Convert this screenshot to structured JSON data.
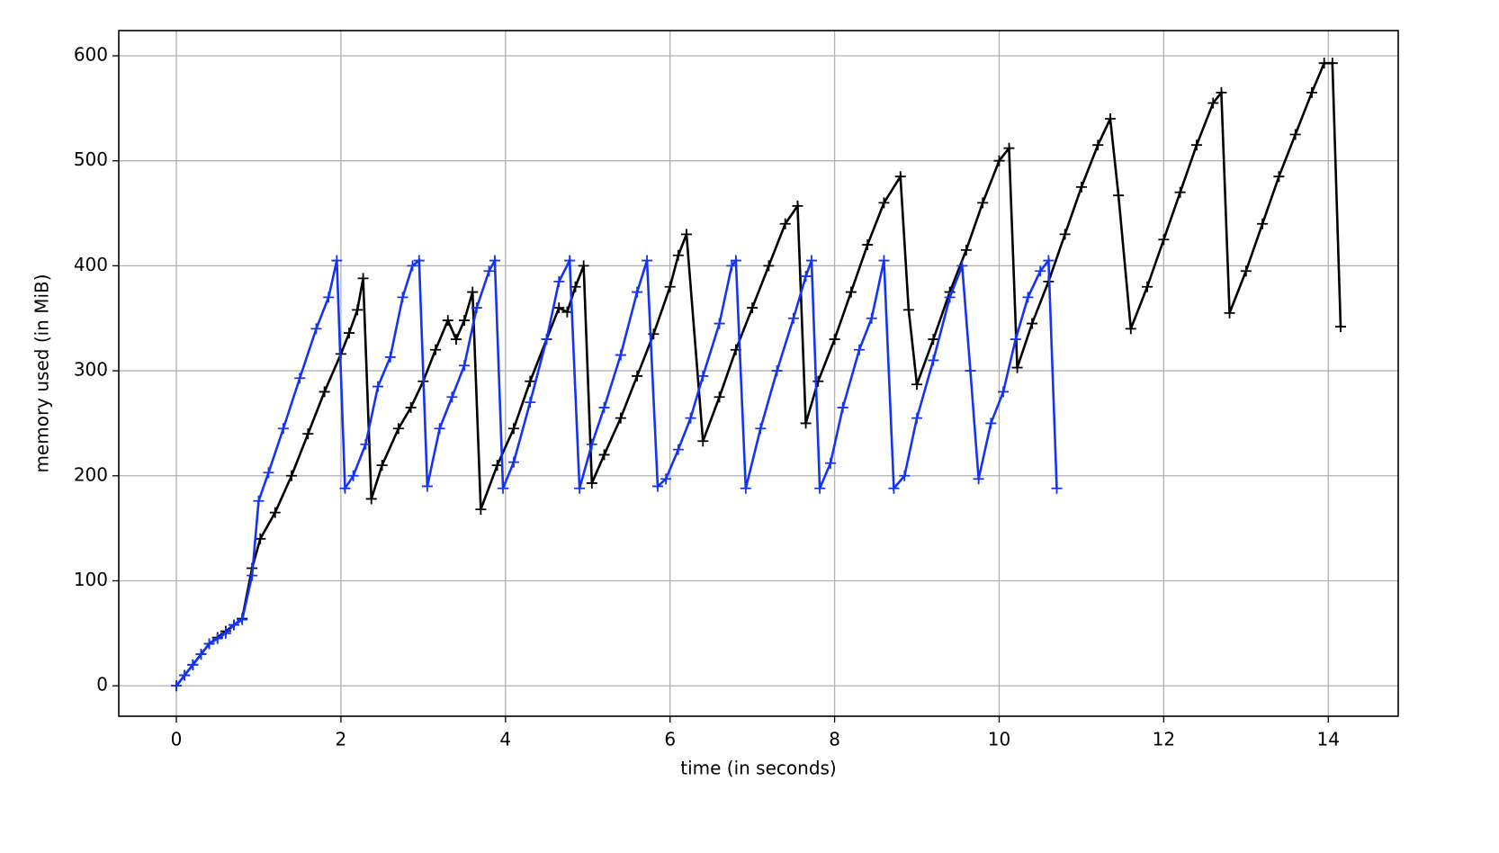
{
  "chart_data": {
    "type": "line",
    "xlabel": "time (in seconds)",
    "ylabel": "memory used (in MiB)",
    "xlim": [
      -0.7,
      14.85
    ],
    "ylim": [
      -29,
      624
    ],
    "xticks": [
      0,
      2,
      4,
      6,
      8,
      10,
      12,
      14
    ],
    "yticks": [
      0,
      100,
      200,
      300,
      400,
      500,
      600
    ],
    "grid": true,
    "marker": "+",
    "series": [
      {
        "color": "#000000",
        "x": [
          0,
          0.1,
          0.2,
          0.3,
          0.4,
          0.5,
          0.6,
          0.7,
          0.8,
          0.92,
          1.02,
          1.2,
          1.4,
          1.6,
          1.8,
          2.0,
          2.1,
          2.2,
          2.27,
          2.37,
          2.5,
          2.7,
          2.85,
          3.0,
          3.15,
          3.3,
          3.4,
          3.5,
          3.6,
          3.7,
          3.9,
          4.1,
          4.3,
          4.5,
          4.65,
          4.75,
          4.85,
          4.95,
          5.05,
          5.2,
          5.4,
          5.6,
          5.8,
          6.0,
          6.1,
          6.2,
          6.4,
          6.6,
          6.8,
          7.0,
          7.2,
          7.4,
          7.55,
          7.65,
          7.8,
          8.0,
          8.2,
          8.4,
          8.6,
          8.8,
          8.9,
          9.0,
          9.2,
          9.4,
          9.6,
          9.8,
          10.0,
          10.12,
          10.22,
          10.4,
          10.6,
          10.8,
          11.0,
          11.2,
          11.35,
          11.45,
          11.6,
          11.8,
          12.0,
          12.2,
          12.4,
          12.6,
          12.7,
          12.8,
          13.0,
          13.2,
          13.4,
          13.6,
          13.8,
          13.95,
          14.05,
          14.15
        ],
        "values": [
          0,
          10,
          20,
          30,
          40,
          46,
          52,
          58,
          64,
          112,
          140,
          165,
          200,
          240,
          280,
          316,
          336,
          358,
          388,
          178,
          210,
          245,
          265,
          290,
          320,
          348,
          330,
          348,
          375,
          168,
          210,
          245,
          290,
          330,
          360,
          356,
          380,
          400,
          193,
          220,
          255,
          295,
          335,
          380,
          410,
          430,
          233,
          275,
          320,
          360,
          400,
          440,
          457,
          250,
          290,
          330,
          375,
          420,
          460,
          485,
          358,
          287,
          330,
          375,
          415,
          460,
          500,
          512,
          303,
          345,
          385,
          430,
          475,
          515,
          540,
          467,
          340,
          380,
          425,
          470,
          515,
          555,
          565,
          355,
          395,
          440,
          485,
          525,
          565,
          593,
          593,
          342
        ]
      },
      {
        "color": "#1433f5",
        "x": [
          0,
          0.1,
          0.2,
          0.3,
          0.4,
          0.5,
          0.6,
          0.7,
          0.8,
          0.92,
          1.0,
          1.12,
          1.3,
          1.5,
          1.7,
          1.85,
          1.95,
          2.05,
          2.15,
          2.3,
          2.45,
          2.6,
          2.75,
          2.87,
          2.95,
          3.05,
          3.2,
          3.35,
          3.5,
          3.65,
          3.8,
          3.87,
          3.97,
          4.1,
          4.3,
          4.5,
          4.65,
          4.78,
          4.9,
          5.05,
          5.2,
          5.4,
          5.6,
          5.72,
          5.85,
          5.95,
          6.1,
          6.25,
          6.4,
          6.6,
          6.75,
          6.8,
          6.92,
          7.1,
          7.3,
          7.5,
          7.65,
          7.72,
          7.82,
          7.95,
          8.1,
          8.3,
          8.45,
          8.6,
          8.72,
          8.85,
          9.0,
          9.2,
          9.4,
          9.55,
          9.65,
          9.75,
          9.9,
          10.05,
          10.2,
          10.35,
          10.5,
          10.6,
          10.7
        ],
        "values": [
          0,
          10,
          20,
          30,
          40,
          45,
          50,
          58,
          63,
          105,
          176,
          203,
          245,
          293,
          340,
          370,
          405,
          188,
          200,
          230,
          285,
          313,
          370,
          400,
          405,
          190,
          245,
          275,
          305,
          360,
          395,
          405,
          188,
          213,
          270,
          330,
          385,
          405,
          188,
          230,
          265,
          315,
          375,
          405,
          190,
          197,
          225,
          255,
          295,
          345,
          400,
          405,
          188,
          245,
          300,
          350,
          390,
          405,
          188,
          212,
          265,
          320,
          350,
          405,
          188,
          200,
          255,
          310,
          370,
          400,
          300,
          197,
          250,
          280,
          330,
          370,
          395,
          405,
          188
        ]
      }
    ]
  }
}
